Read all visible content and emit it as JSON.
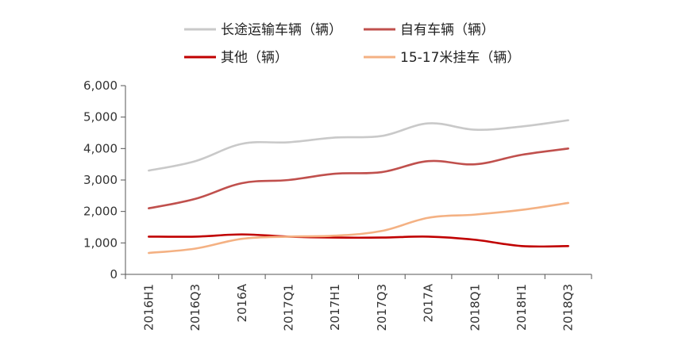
{
  "chart_data": {
    "type": "line",
    "title": "",
    "xlabel": "",
    "ylabel": "",
    "categories": [
      "2016H1",
      "2016Q3",
      "2016A",
      "2017Q1",
      "2017H1",
      "2017Q3",
      "2017A",
      "2018Q1",
      "2018H1",
      "2018Q3"
    ],
    "ylim": [
      0,
      6000
    ],
    "yticks": [
      0,
      1000,
      2000,
      3000,
      4000,
      5000,
      6000
    ],
    "ytick_labels": [
      "0",
      "1,000",
      "2,000",
      "3,000",
      "4,000",
      "5,000",
      "6,000"
    ],
    "grid": false,
    "legend_position": "top",
    "series": [
      {
        "name": "长途运输车辆（辆）",
        "color": "#c9c9c9",
        "values": [
          3300,
          3600,
          4150,
          4200,
          4350,
          4400,
          4800,
          4600,
          4700,
          4900
        ]
      },
      {
        "name": "自有车辆（辆）",
        "color": "#c0504d",
        "values": [
          2100,
          2400,
          2900,
          3000,
          3200,
          3250,
          3600,
          3500,
          3800,
          4000
        ]
      },
      {
        "name": "其他（辆）",
        "color": "#c00000",
        "values": [
          1200,
          1200,
          1270,
          1200,
          1170,
          1170,
          1200,
          1100,
          900,
          900
        ]
      },
      {
        "name": "15-17米挂车（辆）",
        "color": "#f4b183",
        "values": [
          680,
          820,
          1130,
          1200,
          1230,
          1380,
          1800,
          1900,
          2050,
          2270
        ]
      }
    ]
  }
}
